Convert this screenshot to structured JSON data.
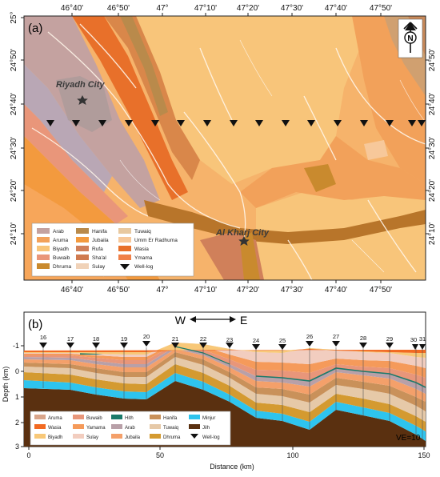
{
  "figure": {
    "panel_a": {
      "label": "(a)",
      "top_ticks": [
        "46°40'",
        "46°50'",
        "47°",
        "47°10'",
        "47°20'",
        "47°30'",
        "47°40'",
        "47°50'"
      ],
      "bottom_ticks": [
        "46°40'",
        "46°50'",
        "47°",
        "47°10'",
        "47°20'",
        "47°30'",
        "47°40'",
        "47°50'"
      ],
      "left_ticks": [
        "25°",
        "24°50'",
        "24°40'",
        "24°30'",
        "24°20'",
        "24°10'"
      ],
      "right_ticks": [
        "24°50'",
        "24°40'",
        "24°30'",
        "24°20'",
        "24°10'"
      ],
      "cities": [
        {
          "name": "Riyadh City"
        },
        {
          "name": "Al Kharj City"
        }
      ],
      "north_arrow": "N",
      "legend": [
        {
          "name": "Arab",
          "color": "#c4a2a0"
        },
        {
          "name": "Hanifa",
          "color": "#b98a4b"
        },
        {
          "name": "Tuwaiq",
          "color": "#e8c9a0"
        },
        {
          "name": "Aruma",
          "color": "#f2a15a"
        },
        {
          "name": "Jubaila",
          "color": "#f39a3e"
        },
        {
          "name": "Umm Er Radhuma",
          "color": "#f7c89a"
        },
        {
          "name": "Biyadh",
          "color": "#f8c57a"
        },
        {
          "name": "Rufa",
          "color": "#d0805a"
        },
        {
          "name": "Wasia",
          "color": "#e8702a"
        },
        {
          "name": "Buwaib",
          "color": "#e9967a"
        },
        {
          "name": "Sha'al",
          "color": "#d07a4f"
        },
        {
          "name": "Ymama",
          "color": "#f08048"
        },
        {
          "name": "Dhruma",
          "color": "#c98a2e"
        },
        {
          "name": "Sulay",
          "color": "#f0d2b8"
        },
        {
          "name": "Well-log",
          "color": "#000000"
        }
      ]
    },
    "panel_b": {
      "label": "(b)",
      "direction_w": "W",
      "direction_e": "E",
      "well_numbers": [
        "16",
        "17",
        "18",
        "19",
        "20",
        "21",
        "22",
        "23",
        "24",
        "25",
        "26",
        "27",
        "28",
        "29",
        "30",
        "31"
      ],
      "ylabel": "Depth (km)",
      "y_ticks": [
        "-1",
        "0",
        "1",
        "2",
        "3"
      ],
      "xlabel": "Distance (km)",
      "x_ticks": [
        "0",
        "50",
        "100",
        "150"
      ],
      "ve_label": "VE=10",
      "legend": [
        {
          "name": "Aruma",
          "color": "#d9a58a"
        },
        {
          "name": "Buwaib",
          "color": "#e8967a"
        },
        {
          "name": "Hith",
          "color": "#1a7a6a"
        },
        {
          "name": "Hanifa",
          "color": "#c9915a"
        },
        {
          "name": "Minjur",
          "color": "#2ec4ee"
        },
        {
          "name": "Wasia",
          "color": "#f26a22"
        },
        {
          "name": "Yamama",
          "color": "#f59a5a"
        },
        {
          "name": "Arab",
          "color": "#b8a0a8"
        },
        {
          "name": "Tuwaiq",
          "color": "#e6c9a8"
        },
        {
          "name": "Jilh",
          "color": "#5a3010"
        },
        {
          "name": "Biyadh",
          "color": "#f8c878"
        },
        {
          "name": "Sulay",
          "color": "#f2cdbf"
        },
        {
          "name": "Jubaila",
          "color": "#f4a06a"
        },
        {
          "name": "Dhruma",
          "color": "#d49a30"
        },
        {
          "name": "Well-log",
          "color": "#000000"
        }
      ]
    }
  }
}
